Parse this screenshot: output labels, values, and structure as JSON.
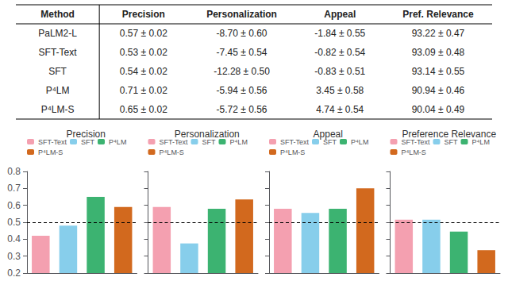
{
  "chart_data": [
    {
      "type": "table",
      "headers": [
        "Method",
        "Precision",
        "Personalization",
        "Appeal",
        "Pref. Relevance"
      ],
      "rows": [
        [
          "PaLM2-L",
          "0.57 ± 0.02",
          "-8.70 ± 0.60",
          "-1.84 ± 0.55",
          "93.22 ± 0.47"
        ],
        [
          "SFT-Text",
          "0.53 ± 0.02",
          "-7.45 ± 0.54",
          "-0.82 ± 0.54",
          "93.09 ± 0.48"
        ],
        [
          "SFT",
          "0.54 ± 0.02",
          "-12.28 ± 0.50",
          "-0.83 ± 0.51",
          "93.14 ± 0.55"
        ],
        [
          "P⁴LM",
          "0.71 ± 0.02",
          "-5.94 ± 0.56",
          "3.45 ± 0.58",
          "90.94 ± 0.46"
        ],
        [
          "P⁴LM-S",
          "0.65 ± 0.02",
          "-5.72 ± 0.56",
          "4.74 ± 0.54",
          "90.04 ± 0.49"
        ]
      ]
    },
    {
      "type": "bar",
      "title": "Precision",
      "categories": [
        "SFT-Text",
        "SFT",
        "P⁴LM",
        "P⁴LM-S"
      ],
      "colors": [
        "#F4A0B0",
        "#87CEEB",
        "#3CB371",
        "#D2691E"
      ],
      "values": [
        0.42,
        0.48,
        0.65,
        0.59
      ],
      "ylim": [
        0.2,
        0.8
      ],
      "yticks": [
        0.2,
        0.3,
        0.4,
        0.5,
        0.6,
        0.7,
        0.8
      ],
      "hline": 0.5,
      "legend": "top",
      "tick_labels": "y"
    },
    {
      "type": "bar",
      "title": "Personalization",
      "categories": [
        "SFT-Text",
        "SFT",
        "P⁴LM",
        "P⁴LM-S"
      ],
      "colors": [
        "#F4A0B0",
        "#87CEEB",
        "#3CB371",
        "#D2691E"
      ],
      "values": [
        0.59,
        0.375,
        0.58,
        0.635
      ],
      "ylim": [
        0.2,
        0.8
      ],
      "yticks": [
        0.2,
        0.3,
        0.4,
        0.5,
        0.6,
        0.7,
        0.8
      ],
      "hline": 0.5,
      "legend": "top",
      "tick_labels": false
    },
    {
      "type": "bar",
      "title": "Appeal",
      "categories": [
        "SFT-Text",
        "SFT",
        "P⁴LM",
        "P⁴LM-S"
      ],
      "colors": [
        "#F4A0B0",
        "#87CEEB",
        "#3CB371",
        "#D2691E"
      ],
      "values": [
        0.58,
        0.555,
        0.58,
        0.7
      ],
      "ylim": [
        0.2,
        0.8
      ],
      "yticks": [
        0.2,
        0.3,
        0.4,
        0.5,
        0.6,
        0.7,
        0.8
      ],
      "hline": 0.5,
      "legend": "top",
      "tick_labels": false
    },
    {
      "type": "bar",
      "title": "Preference Relevance",
      "categories": [
        "SFT-Text",
        "SFT",
        "P⁴LM",
        "P⁴LM-S"
      ],
      "colors": [
        "#F4A0B0",
        "#87CEEB",
        "#3CB371",
        "#D2691E"
      ],
      "values": [
        0.515,
        0.515,
        0.445,
        0.335
      ],
      "ylim": [
        0.2,
        0.8
      ],
      "yticks": [
        0.2,
        0.3,
        0.4,
        0.5,
        0.6,
        0.7,
        0.8
      ],
      "hline": 0.5,
      "legend": "top",
      "tick_labels": false
    }
  ]
}
